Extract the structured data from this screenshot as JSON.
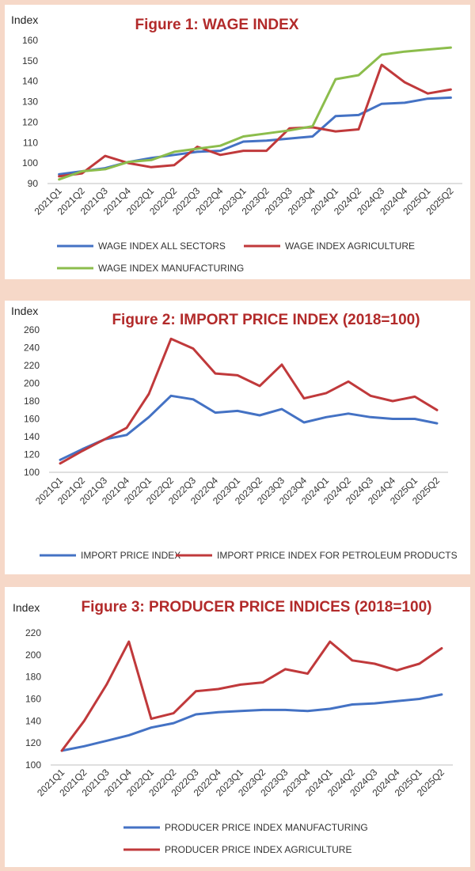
{
  "chart_data": [
    {
      "type": "line",
      "title": "Figure 1: WAGE INDEX",
      "ylabel": "Index",
      "xlabel": "",
      "ylim": [
        90,
        160
      ],
      "yticks": [
        90,
        100,
        110,
        120,
        130,
        140,
        150,
        160
      ],
      "grid": false,
      "legend_position": "bottom",
      "categories": [
        "2021Q1",
        "2021Q2",
        "2021Q3",
        "2021Q4",
        "2022Q1",
        "2022Q2",
        "2022Q3",
        "2022Q4",
        "2023Q1",
        "2023Q2",
        "2023Q3",
        "2023Q4",
        "2024Q1",
        "2024Q2",
        "2024Q3",
        "2024Q4",
        "2025Q1",
        "2025Q2"
      ],
      "series": [
        {
          "name": "WAGE INDEX ALL SECTORS",
          "color": "#4472c4",
          "values": [
            94.5,
            96,
            97.5,
            100.5,
            102.5,
            104,
            105.5,
            106,
            110.5,
            111,
            112,
            113,
            123,
            123.5,
            129,
            129.5,
            131.5,
            132
          ]
        },
        {
          "name": "WAGE INDEX AGRICULTURE",
          "color": "#c0393b",
          "values": [
            93.5,
            95,
            103.5,
            100,
            98,
            99,
            108,
            104,
            106,
            106,
            117,
            117.5,
            115.5,
            116.5,
            148,
            139.5,
            134,
            136
          ]
        },
        {
          "name": "WAGE INDEX MANUFACTURING",
          "color": "#8cbd4c",
          "values": [
            92,
            96,
            97,
            100.5,
            101.5,
            105.5,
            107,
            108.5,
            113,
            114.5,
            116,
            118,
            141,
            143,
            153,
            154.5,
            155.5,
            156.5
          ]
        }
      ]
    },
    {
      "type": "line",
      "title": "Figure 2: IMPORT PRICE INDEX (2018=100)",
      "ylabel": "Index",
      "xlabel": "",
      "ylim": [
        100,
        260
      ],
      "yticks": [
        100,
        120,
        140,
        160,
        180,
        200,
        220,
        240,
        260
      ],
      "grid": false,
      "legend_position": "bottom",
      "categories": [
        "2021Q1",
        "2021Q2",
        "2021Q3",
        "2021Q4",
        "2022Q1",
        "2022Q2",
        "2022Q3",
        "2022Q4",
        "2023Q1",
        "2023Q2",
        "2023Q3",
        "2023Q4",
        "2024Q1",
        "2024Q2",
        "2024Q3",
        "2024Q4",
        "2025Q1",
        "2025Q2"
      ],
      "series": [
        {
          "name": "IMPORT PRICE INDEX",
          "color": "#4472c4",
          "values": [
            114,
            126,
            137,
            142,
            162,
            186,
            182,
            167,
            169,
            164,
            171,
            156,
            162,
            166,
            162,
            160,
            160,
            155
          ]
        },
        {
          "name": "IMPORT PRICE INDEX FOR PETROLEUM PRODUCTS",
          "color": "#c0393b",
          "values": [
            110,
            124,
            137,
            150,
            188,
            250,
            239,
            211,
            209,
            197,
            221,
            183,
            189,
            202,
            186,
            180,
            185,
            170
          ]
        }
      ]
    },
    {
      "type": "line",
      "title": "Figure 3: PRODUCER PRICE INDICES (2018=100)",
      "ylabel": "Index",
      "xlabel": "",
      "ylim": [
        100,
        220
      ],
      "yticks": [
        100,
        120,
        140,
        160,
        180,
        200,
        220
      ],
      "grid": false,
      "legend_position": "bottom",
      "categories": [
        "2021Q1",
        "2021Q2",
        "2021Q3",
        "2021Q4",
        "2022Q1",
        "2022Q2",
        "2022Q3",
        "2022Q4",
        "2023Q1",
        "2023Q2",
        "2023Q3",
        "2023Q4",
        "2024Q1",
        "2024Q2",
        "2024Q3",
        "2024Q4",
        "2025Q1",
        "2025Q2"
      ],
      "series": [
        {
          "name": "PRODUCER PRICE INDEX MANUFACTURING",
          "color": "#4472c4",
          "values": [
            113,
            117,
            122,
            127,
            134,
            138,
            146,
            148,
            149,
            150,
            150,
            149,
            151,
            155,
            156,
            158,
            160,
            164
          ]
        },
        {
          "name": "PRODUCER PRICE INDEX AGRICULTURE",
          "color": "#c0393b",
          "values": [
            113,
            140,
            173,
            212,
            142,
            147,
            167,
            169,
            173,
            175,
            187,
            183,
            212,
            195,
            192,
            186,
            192,
            206
          ]
        }
      ]
    }
  ]
}
